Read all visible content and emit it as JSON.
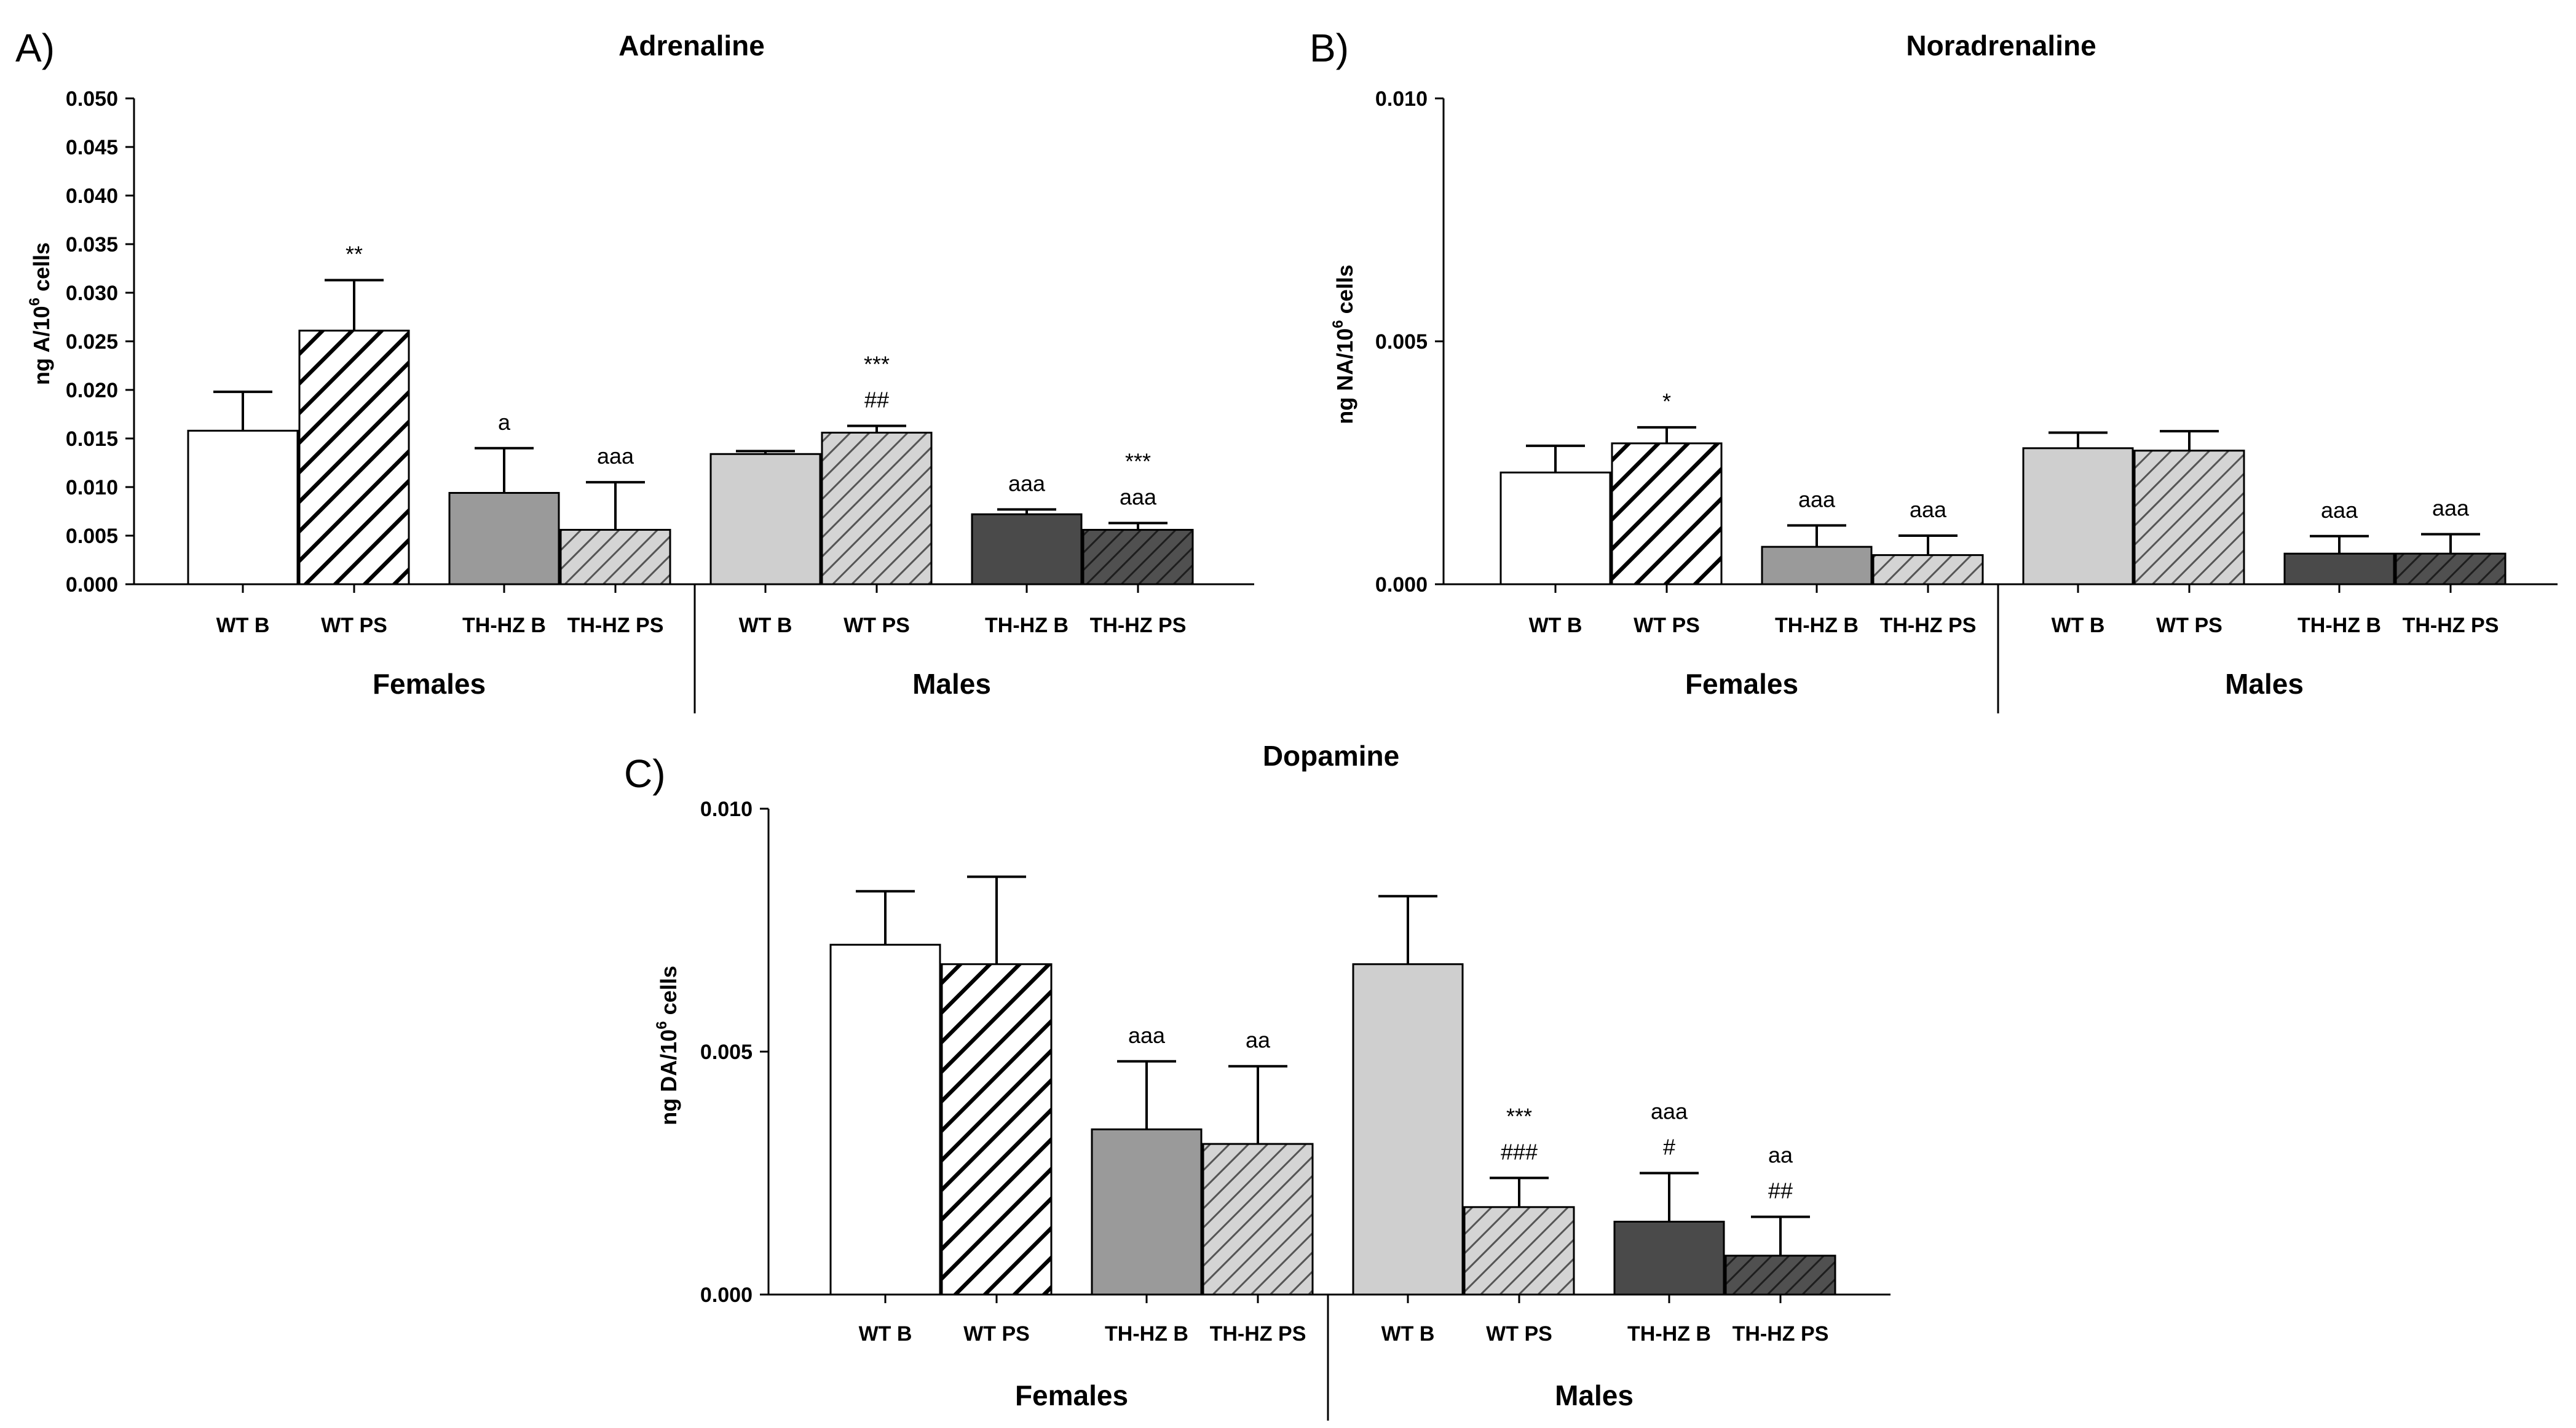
{
  "colors": {
    "wt_b_fill": "#ffffff",
    "wt_ps_fill": "#ffffff",
    "thhz_b_fill": "#9a9a9a",
    "thhz_ps_fill": "#c8c8c8",
    "m_wt_b_fill": "#cfcfcf",
    "m_wt_ps_fill": "#c8c8c8",
    "m_thhz_b_fill": "#4a4a4a",
    "m_thhz_ps_fill": "#4a4a4a",
    "axis": "#000000"
  },
  "chart_data": [
    {
      "type": "bar",
      "panel_label": "A)",
      "title": "Adrenaline",
      "ylabel_main": "ng A/10",
      "ylabel_sup": "6",
      "ylabel_tail": " cells",
      "ylim": [
        0,
        0.05
      ],
      "yticks": [
        "0.000",
        "0.005",
        "0.010",
        "0.015",
        "0.020",
        "0.025",
        "0.030",
        "0.035",
        "0.040",
        "0.045",
        "0.050"
      ],
      "groups": [
        "Females",
        "Males"
      ],
      "categories": [
        "WT B",
        "WT PS",
        "TH-HZ B",
        "TH-HZ PS",
        "WT B",
        "WT PS",
        "TH-HZ B",
        "TH-HZ PS"
      ],
      "values": [
        0.0158,
        0.0261,
        0.0094,
        0.0056,
        0.0134,
        0.0156,
        0.0072,
        0.0056
      ],
      "errors": [
        0.004,
        0.0052,
        0.0046,
        0.0049,
        0.0003,
        0.0007,
        0.0005,
        0.0007
      ],
      "annotations": [
        [],
        [
          "**"
        ],
        [
          "a"
        ],
        [
          "aaa"
        ],
        [],
        [
          "***",
          "##"
        ],
        [
          "aaa"
        ],
        [
          "***",
          "aaa"
        ]
      ]
    },
    {
      "type": "bar",
      "panel_label": "B)",
      "title": "Noradrenaline",
      "ylabel_main": "ng NA/10",
      "ylabel_sup": "6",
      "ylabel_tail": " cells",
      "ylim": [
        0,
        0.01
      ],
      "yticks": [
        "0.000",
        "0.005",
        "0.010"
      ],
      "groups": [
        "Females",
        "Males"
      ],
      "categories": [
        "WT B",
        "WT PS",
        "TH-HZ B",
        "TH-HZ PS",
        "WT B",
        "WT PS",
        "TH-HZ B",
        "TH-HZ PS"
      ],
      "values": [
        0.0023,
        0.0029,
        0.00077,
        0.0006,
        0.0028,
        0.00275,
        0.00063,
        0.00063
      ],
      "errors": [
        0.00055,
        0.00033,
        0.00044,
        0.0004,
        0.00032,
        0.0004,
        0.00036,
        0.0004
      ],
      "annotations": [
        [],
        [
          "*"
        ],
        [
          "aaa"
        ],
        [
          "aaa"
        ],
        [],
        [],
        [
          "aaa"
        ],
        [
          "aaa"
        ]
      ]
    },
    {
      "type": "bar",
      "panel_label": "C)",
      "title": "Dopamine",
      "ylabel_main": "ng DA/10",
      "ylabel_sup": "6",
      "ylabel_tail": " cells",
      "ylim": [
        0,
        0.01
      ],
      "yticks": [
        "0.000",
        "0.005",
        "0.010"
      ],
      "groups": [
        "Females",
        "Males"
      ],
      "categories": [
        "WT B",
        "WT PS",
        "TH-HZ B",
        "TH-HZ PS",
        "WT B",
        "WT PS",
        "TH-HZ B",
        "TH-HZ PS"
      ],
      "values": [
        0.0072,
        0.0068,
        0.0034,
        0.0031,
        0.0068,
        0.0018,
        0.0015,
        0.0008
      ],
      "errors": [
        0.0011,
        0.0018,
        0.0014,
        0.0016,
        0.0014,
        0.0006,
        0.001,
        0.0008
      ],
      "annotations": [
        [],
        [],
        [
          "aaa"
        ],
        [
          "aa"
        ],
        [],
        [
          "***",
          "###"
        ],
        [
          "aaa",
          "#"
        ],
        [
          "aa",
          "##"
        ]
      ]
    }
  ]
}
